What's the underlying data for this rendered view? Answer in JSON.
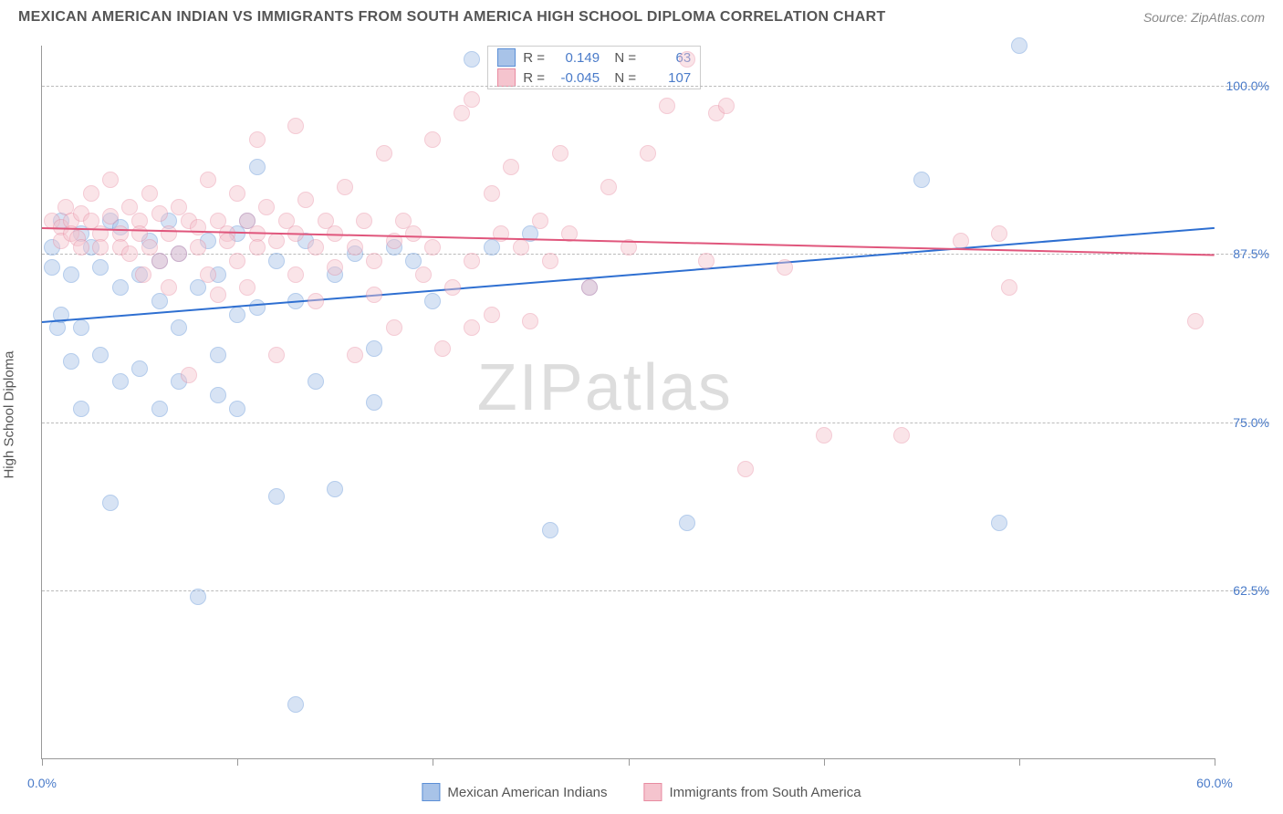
{
  "title": "MEXICAN AMERICAN INDIAN VS IMMIGRANTS FROM SOUTH AMERICA HIGH SCHOOL DIPLOMA CORRELATION CHART",
  "source": "Source: ZipAtlas.com",
  "watermark_a": "ZIP",
  "watermark_b": "atlas",
  "y_axis_label": "High School Diploma",
  "chart": {
    "type": "scatter",
    "xlim": [
      0,
      60
    ],
    "ylim": [
      50,
      103
    ],
    "x_ticks_percent": [
      0,
      10,
      20,
      30,
      40,
      50,
      60
    ],
    "x_tick_labels": {
      "0": "0.0%",
      "60": "60.0%"
    },
    "y_ticks": [
      {
        "v": 62.5,
        "label": "62.5%"
      },
      {
        "v": 75.0,
        "label": "75.0%"
      },
      {
        "v": 87.5,
        "label": "87.5%"
      },
      {
        "v": 100.0,
        "label": "100.0%"
      }
    ],
    "grid_color": "#bbbbbb",
    "background": "#ffffff",
    "marker_radius": 9,
    "marker_opacity": 0.45,
    "series": [
      {
        "key": "mai",
        "name": "Mexican American Indians",
        "marker_fill": "#a8c3e8",
        "marker_stroke": "#5b8fd6",
        "line_color": "#2e6fd1",
        "R": "0.149",
        "N": "63",
        "trend": {
          "y_at_x0": 82.5,
          "y_at_x60": 89.5
        },
        "points": [
          [
            0.5,
            88
          ],
          [
            0.5,
            86.5
          ],
          [
            0.8,
            82
          ],
          [
            1,
            90
          ],
          [
            1,
            83
          ],
          [
            1.5,
            86
          ],
          [
            1.5,
            79.5
          ],
          [
            2,
            89
          ],
          [
            2,
            82
          ],
          [
            2,
            76
          ],
          [
            2.5,
            88
          ],
          [
            3,
            86.5
          ],
          [
            3,
            80
          ],
          [
            3.5,
            90
          ],
          [
            3.5,
            69
          ],
          [
            4,
            89.5
          ],
          [
            4,
            85
          ],
          [
            4,
            78
          ],
          [
            5,
            86
          ],
          [
            5,
            79
          ],
          [
            5.5,
            88.5
          ],
          [
            6,
            87
          ],
          [
            6,
            84
          ],
          [
            6,
            76
          ],
          [
            6.5,
            90
          ],
          [
            7,
            87.5
          ],
          [
            7,
            82
          ],
          [
            7,
            78
          ],
          [
            8,
            62
          ],
          [
            8,
            85
          ],
          [
            8.5,
            88.5
          ],
          [
            9,
            86
          ],
          [
            9,
            80
          ],
          [
            9,
            77
          ],
          [
            10,
            89
          ],
          [
            10,
            83
          ],
          [
            10,
            76
          ],
          [
            10.5,
            90
          ],
          [
            11,
            83.5
          ],
          [
            11,
            94
          ],
          [
            12,
            87
          ],
          [
            12,
            69.5
          ],
          [
            13,
            54
          ],
          [
            13,
            84
          ],
          [
            13.5,
            88.5
          ],
          [
            14,
            78
          ],
          [
            15,
            86
          ],
          [
            15,
            70
          ],
          [
            16,
            87.5
          ],
          [
            17,
            80.5
          ],
          [
            17,
            76.5
          ],
          [
            18,
            88
          ],
          [
            19,
            87
          ],
          [
            20,
            84
          ],
          [
            22,
            102
          ],
          [
            23,
            88
          ],
          [
            25,
            89
          ],
          [
            28,
            85
          ],
          [
            33,
            67.5
          ],
          [
            45,
            93
          ],
          [
            49,
            67.5
          ],
          [
            50,
            103
          ],
          [
            26,
            67
          ]
        ]
      },
      {
        "key": "isa",
        "name": "Immigrants from South America",
        "marker_fill": "#f5c4ce",
        "marker_stroke": "#e88ba1",
        "line_color": "#e0567c",
        "R": "-0.045",
        "N": "107",
        "trend": {
          "y_at_x0": 89.5,
          "y_at_x60": 87.5
        },
        "points": [
          [
            0.5,
            90
          ],
          [
            1,
            89.5
          ],
          [
            1,
            88.5
          ],
          [
            1.2,
            91
          ],
          [
            1.5,
            90
          ],
          [
            1.5,
            89
          ],
          [
            1.8,
            88.7
          ],
          [
            2,
            90.5
          ],
          [
            2,
            88
          ],
          [
            2.5,
            90
          ],
          [
            2.5,
            92
          ],
          [
            3,
            89
          ],
          [
            3,
            88
          ],
          [
            3.5,
            90.3
          ],
          [
            3.5,
            93
          ],
          [
            4,
            89
          ],
          [
            4,
            88
          ],
          [
            4.5,
            91
          ],
          [
            4.5,
            87.5
          ],
          [
            5,
            90
          ],
          [
            5,
            89
          ],
          [
            5.2,
            86
          ],
          [
            5.5,
            92
          ],
          [
            5.5,
            88
          ],
          [
            6,
            90.5
          ],
          [
            6,
            87
          ],
          [
            6.5,
            89
          ],
          [
            6.5,
            85
          ],
          [
            7,
            91
          ],
          [
            7,
            87.5
          ],
          [
            7.5,
            90
          ],
          [
            7.5,
            78.5
          ],
          [
            8,
            89.5
          ],
          [
            8,
            88
          ],
          [
            8.5,
            93
          ],
          [
            8.5,
            86
          ],
          [
            9,
            90
          ],
          [
            9,
            84.5
          ],
          [
            9.5,
            89
          ],
          [
            9.5,
            88.5
          ],
          [
            10,
            92
          ],
          [
            10,
            87
          ],
          [
            10.5,
            90
          ],
          [
            10.5,
            85
          ],
          [
            11,
            89
          ],
          [
            11,
            88
          ],
          [
            11,
            96
          ],
          [
            11.5,
            91
          ],
          [
            12,
            88.5
          ],
          [
            12,
            80
          ],
          [
            12.5,
            90
          ],
          [
            13,
            89
          ],
          [
            13,
            86
          ],
          [
            13,
            97
          ],
          [
            13.5,
            91.5
          ],
          [
            14,
            88
          ],
          [
            14,
            84
          ],
          [
            14.5,
            90
          ],
          [
            15,
            89
          ],
          [
            15,
            86.5
          ],
          [
            15.5,
            92.5
          ],
          [
            16,
            88
          ],
          [
            16,
            80
          ],
          [
            16.5,
            90
          ],
          [
            17,
            87
          ],
          [
            17,
            84.5
          ],
          [
            17.5,
            95
          ],
          [
            18,
            88.5
          ],
          [
            18,
            82
          ],
          [
            18.5,
            90
          ],
          [
            19,
            89
          ],
          [
            19.5,
            86
          ],
          [
            20,
            96
          ],
          [
            20,
            88
          ],
          [
            20.5,
            80.5
          ],
          [
            21,
            85
          ],
          [
            21.5,
            98
          ],
          [
            22,
            87
          ],
          [
            22,
            82
          ],
          [
            22,
            99
          ],
          [
            23,
            92
          ],
          [
            23,
            83
          ],
          [
            23.5,
            89
          ],
          [
            24,
            94
          ],
          [
            24.5,
            88
          ],
          [
            25,
            82.5
          ],
          [
            25.5,
            90
          ],
          [
            26,
            87
          ],
          [
            26.5,
            95
          ],
          [
            27,
            89
          ],
          [
            28,
            85
          ],
          [
            29,
            92.5
          ],
          [
            30,
            88
          ],
          [
            31,
            95
          ],
          [
            32,
            98.5
          ],
          [
            33,
            102
          ],
          [
            34,
            87
          ],
          [
            36,
            71.5
          ],
          [
            38,
            86.5
          ],
          [
            40,
            74
          ],
          [
            44,
            74
          ],
          [
            47,
            88.5
          ],
          [
            49,
            89
          ],
          [
            49.5,
            85
          ],
          [
            59,
            82.5
          ],
          [
            34.5,
            98
          ],
          [
            35,
            98.5
          ]
        ]
      }
    ],
    "legend_top": {
      "r_label": "R =",
      "n_label": "N ="
    },
    "legend_bottom": [
      {
        "swatch_fill": "#a8c3e8",
        "swatch_stroke": "#5b8fd6",
        "label": "Mexican American Indians"
      },
      {
        "swatch_fill": "#f5c4ce",
        "swatch_stroke": "#e88ba1",
        "label": "Immigrants from South America"
      }
    ]
  }
}
